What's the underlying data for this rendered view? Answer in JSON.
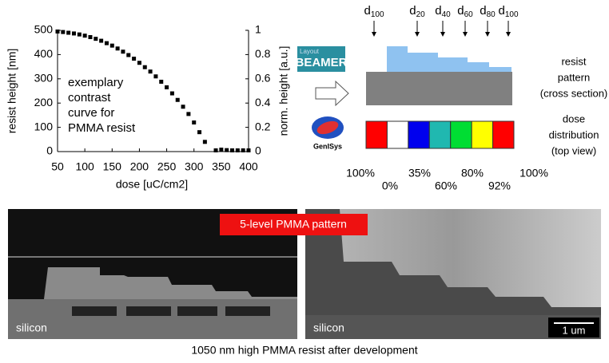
{
  "chart_data": {
    "type": "scatter",
    "x": [
      50,
      60,
      70,
      80,
      90,
      100,
      110,
      120,
      130,
      140,
      150,
      160,
      170,
      180,
      190,
      200,
      210,
      220,
      230,
      240,
      250,
      260,
      270,
      280,
      290,
      300,
      310,
      320,
      340,
      350,
      360,
      370,
      380,
      390,
      400
    ],
    "values": [
      495,
      493,
      490,
      487,
      483,
      478,
      472,
      465,
      457,
      447,
      437,
      425,
      412,
      398,
      383,
      366,
      348,
      330,
      310,
      288,
      265,
      240,
      213,
      185,
      155,
      120,
      80,
      40,
      5,
      8,
      6,
      5,
      5,
      5,
      5
    ],
    "color": "#000000",
    "xlabel": "dose [uC/cm2]",
    "ylabel": "resist height [nm]",
    "y2label": "norm. height [a.u.]",
    "xlim": [
      50,
      400
    ],
    "xticks": [
      50,
      100,
      150,
      200,
      250,
      300,
      350,
      400
    ],
    "ylim": [
      0,
      500
    ],
    "yticks": [
      0,
      100,
      200,
      300,
      400,
      500
    ],
    "y2lim": [
      0,
      1
    ],
    "y2ticks": [
      0,
      0.2,
      0.4,
      0.6,
      0.8,
      1
    ],
    "annotation": [
      "exemplary",
      "contrast",
      "curve for",
      "PMMA resist"
    ]
  },
  "diagram": {
    "dose_markers": [
      {
        "base": "d",
        "sub": "100"
      },
      {
        "base": "d",
        "sub": "20"
      },
      {
        "base": "d",
        "sub": "40"
      },
      {
        "base": "d",
        "sub": "60"
      },
      {
        "base": "d",
        "sub": "80"
      },
      {
        "base": "d",
        "sub": "100"
      }
    ],
    "logo_beamer": {
      "small": "Layout",
      "big": "BEAMER"
    },
    "logo_genisys": "GenISys",
    "resist_label": [
      "resist",
      "pattern",
      "(cross section)"
    ],
    "dose_label": [
      "dose",
      "distribution",
      "(top view)"
    ],
    "dose_colors": [
      "#ff0000",
      "#ffffff",
      "#0000ee",
      "#20b8b0",
      "#00dd33",
      "#ffff00",
      "#ff0000"
    ],
    "dose_percent": [
      "100%",
      "0%",
      "35%",
      "60%",
      "80%",
      "92%",
      "100%"
    ]
  },
  "images": {
    "banner": "5-level PMMA pattern",
    "left_label": "silicon",
    "right_label": "silicon",
    "scale_bar": "1 um",
    "caption": "1050 nm high PMMA resist after development"
  }
}
